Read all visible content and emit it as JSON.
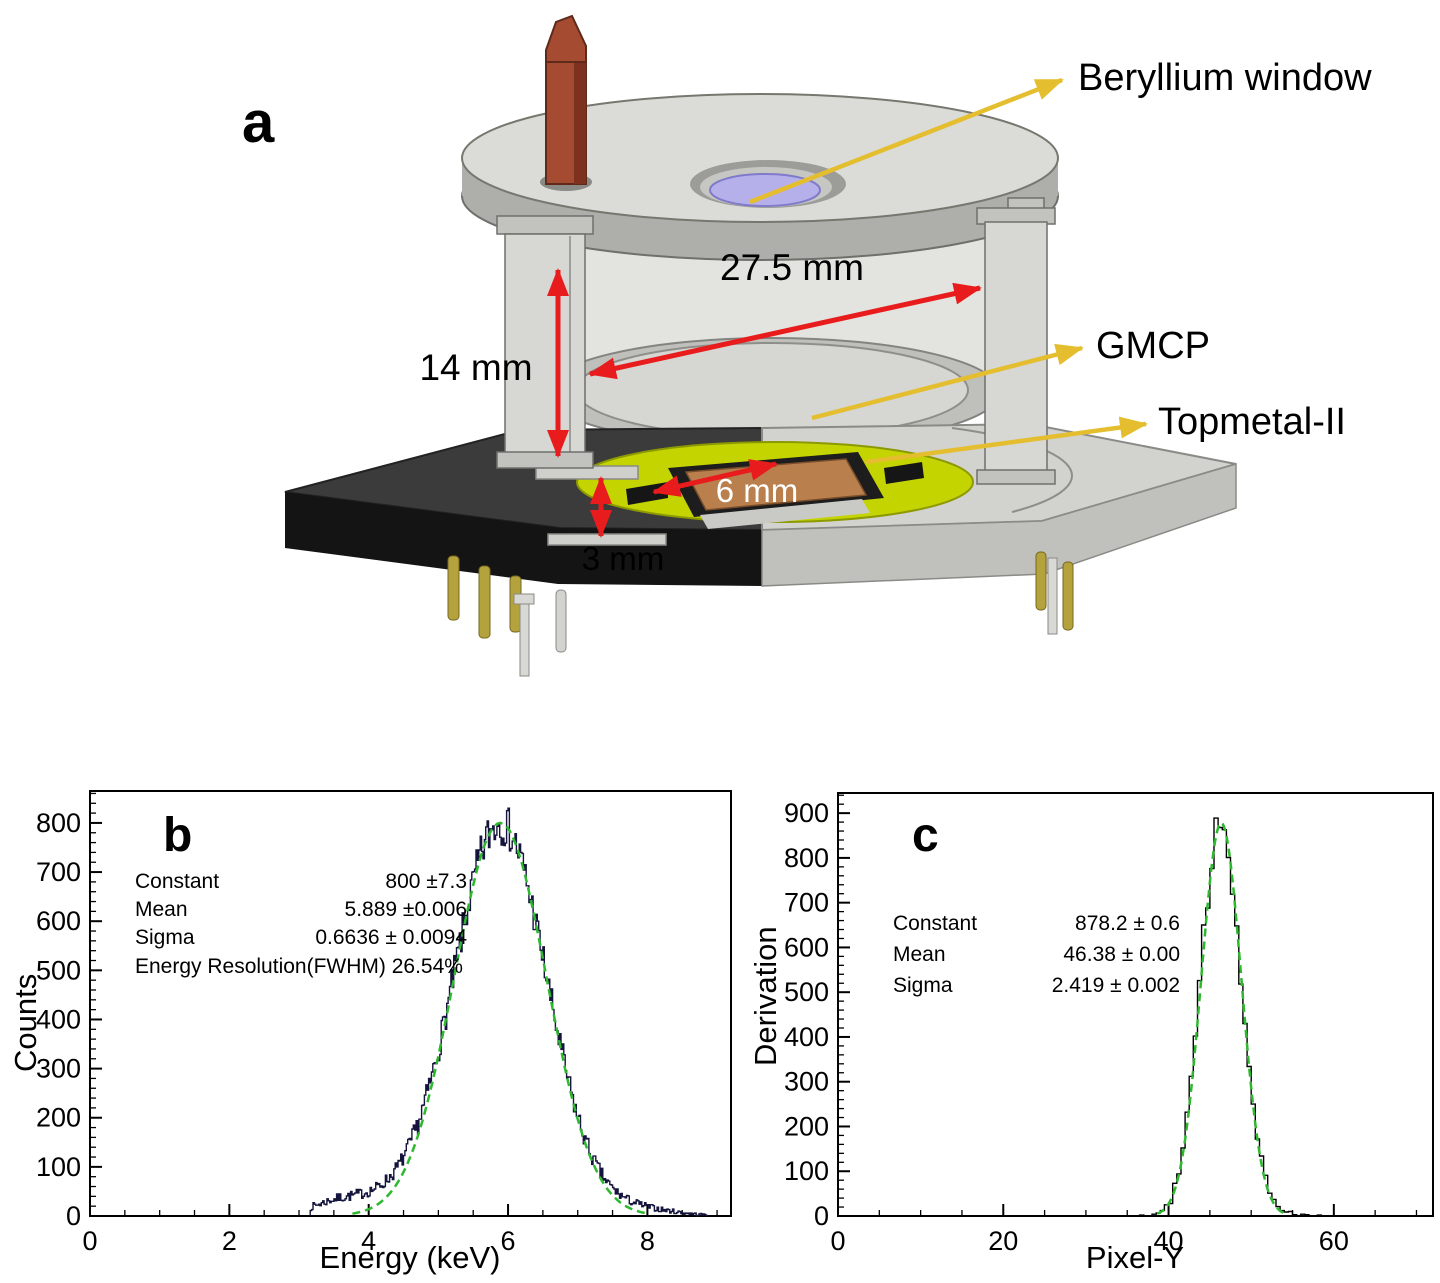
{
  "panel_a": {
    "label": "a",
    "labels": {
      "beryllium_window": "Beryllium window",
      "gmcp": "GMCP",
      "topmetal": "Topmetal-II"
    },
    "dimensions": {
      "cylinder_height": "14 mm",
      "inner_diameter": "27.5 mm",
      "chip_width": "6 mm",
      "gap_height": "3 mm"
    },
    "colors": {
      "dimension_arrow": "#e81c1c",
      "label_arrow": "#e4be2f",
      "window": "#b6b0ea",
      "pcb": "#c3d400",
      "chip": "#b97f4d",
      "tube": "#a54b31",
      "metal_light": "#dbdbd7",
      "metal_mid": "#aeaeaa",
      "base_dark": "#3b3b3b",
      "base_black": "#141414"
    }
  },
  "chart_data": [
    {
      "type": "bar",
      "panel_label": "b",
      "title": "",
      "xlabel": "Energy (keV)",
      "ylabel": "Counts",
      "xlim": [
        0,
        9.2
      ],
      "ylim": [
        0,
        865
      ],
      "xticks": [
        0,
        2,
        4,
        6,
        8
      ],
      "yticks": [
        0,
        100,
        200,
        300,
        400,
        500,
        600,
        700,
        800
      ],
      "x_minor_step": 0.5,
      "y_minor_step": 20,
      "fit": {
        "type": "gaussian",
        "constant": 800,
        "mean": 5.889,
        "sigma": 0.6636
      },
      "hist": {
        "x_start": 3.16,
        "x_end": 8.86,
        "bin_width": 0.02,
        "seed": 7,
        "tails": [
          {
            "amp": 26,
            "mu": 3.55,
            "sigma": 0.38
          },
          {
            "amp": 30,
            "mu": 4.35,
            "sigma": 0.5
          },
          {
            "amp": 16,
            "mu": 7.75,
            "sigma": 0.55
          }
        ]
      },
      "stats": {
        "rows": [
          {
            "label": "Constant",
            "value": "800 ±7.3"
          },
          {
            "label": "Mean",
            "value": "5.889 ±0.006"
          },
          {
            "label": "Sigma",
            "value": "0.6636 ± 0.0094"
          }
        ],
        "extra": "Energy Resolution(FWHM) 26.54%"
      },
      "colors": {
        "hist": "#14143c",
        "fit": "#2eb82e"
      },
      "grid": false,
      "legend": "none"
    },
    {
      "type": "bar",
      "panel_label": "c",
      "title": "",
      "xlabel": "Pixel-Y",
      "ylabel": "Derivation",
      "xlim": [
        0,
        72
      ],
      "ylim": [
        0,
        945
      ],
      "xticks": [
        0,
        20,
        40,
        60
      ],
      "yticks": [
        0,
        100,
        200,
        300,
        400,
        500,
        600,
        700,
        800,
        900
      ],
      "x_minor_step": 5,
      "y_minor_step": 20,
      "fit": {
        "type": "gaussian",
        "constant": 878.2,
        "mean": 46.38,
        "sigma": 2.419
      },
      "hist": {
        "x_start": 35.0,
        "x_end": 58.5,
        "bin_width": 0.5,
        "seed": 12,
        "tails": [
          {
            "amp": 20,
            "mu": 43.2,
            "sigma": 1.3
          },
          {
            "amp": 14,
            "mu": 50.5,
            "sigma": 1.6
          },
          {
            "amp": 5,
            "mu": 54.5,
            "sigma": 2.0
          }
        ]
      },
      "stats": {
        "rows": [
          {
            "label": "Constant",
            "value": "878.2 ± 0.6"
          },
          {
            "label": "Mean",
            "value": "46.38 ± 0.00"
          },
          {
            "label": "Sigma",
            "value": "2.419 ± 0.002"
          }
        ],
        "extra": ""
      },
      "colors": {
        "hist": "#000000",
        "fit": "#2eb82e"
      },
      "grid": false,
      "legend": "none"
    }
  ]
}
